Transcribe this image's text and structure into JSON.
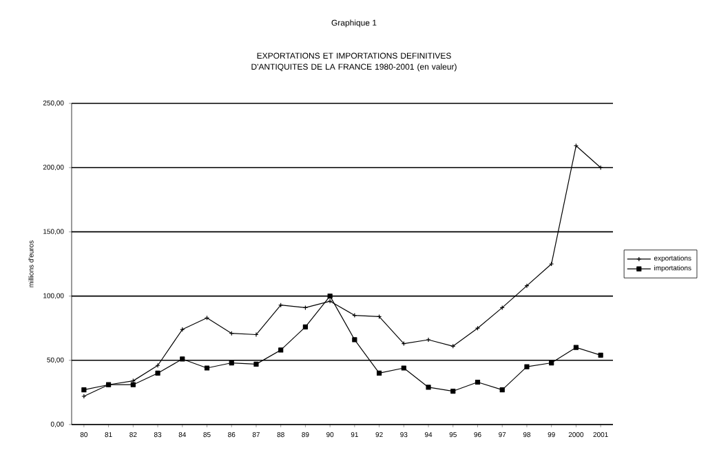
{
  "chart_data": {
    "type": "line",
    "title": "Graphique 1",
    "subtitle": "EXPORTATIONS ET IMPORTATIONS DEFINITIVES D'ANTIQUITES DE LA FRANCE 1980-2001 (en valeur)",
    "ylabel": "millions d'euros",
    "categories": [
      "80",
      "81",
      "82",
      "83",
      "84",
      "85",
      "86",
      "87",
      "88",
      "89",
      "90",
      "91",
      "92",
      "93",
      "94",
      "95",
      "96",
      "97",
      "98",
      "99",
      "2000",
      "2001"
    ],
    "series": [
      {
        "name": "exportations",
        "color": "#000000",
        "marker": "cross",
        "values": [
          22,
          31,
          34,
          46,
          74,
          83,
          71,
          70,
          93,
          91,
          96,
          85,
          84,
          63,
          66,
          61,
          75,
          91,
          108,
          125,
          217,
          200
        ]
      },
      {
        "name": "importations",
        "color": "#000000",
        "marker": "square",
        "values": [
          27,
          31,
          31,
          40,
          51,
          44,
          48,
          47,
          58,
          76,
          100,
          66,
          40,
          44,
          29,
          26,
          33,
          27,
          45,
          48,
          60,
          54
        ]
      }
    ],
    "ylim": [
      0,
      250
    ],
    "yticks": [
      {
        "value": 0,
        "label": "0,00"
      },
      {
        "value": 50,
        "label": "50,00"
      },
      {
        "value": 100,
        "label": "100,00"
      },
      {
        "value": 150,
        "label": "150,00"
      },
      {
        "value": 200,
        "label": "200,00"
      },
      {
        "value": 250,
        "label": "250,00"
      }
    ],
    "grid": "y",
    "legend": "right",
    "line_style": "solid"
  }
}
